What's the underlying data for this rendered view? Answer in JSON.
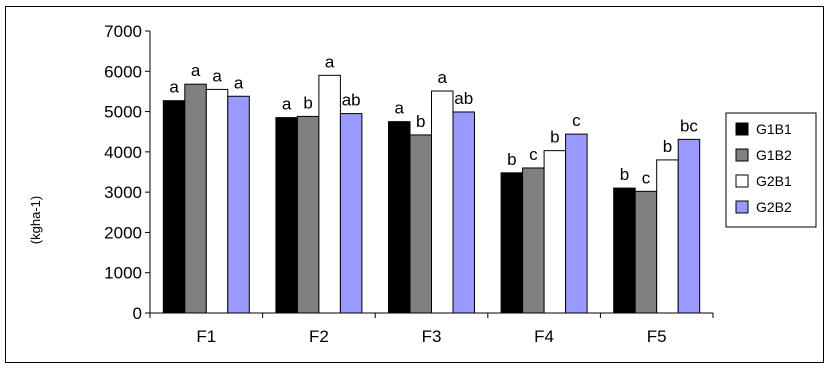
{
  "chart_data": {
    "type": "bar",
    "title": "",
    "xlabel": "",
    "ylabel": "(kgha-1)",
    "ylim": [
      0,
      7000
    ],
    "yticks": [
      0,
      1000,
      2000,
      3000,
      4000,
      5000,
      6000,
      7000
    ],
    "grid": false,
    "legend_position": "right",
    "categories": [
      "F1",
      "F2",
      "F3",
      "F4",
      "F5"
    ],
    "series": [
      {
        "name": "G1B1",
        "color": "#000000",
        "values": [
          5270,
          4850,
          4750,
          3480,
          3100
        ],
        "labels": [
          "a",
          "a",
          "a",
          "b",
          "b"
        ]
      },
      {
        "name": "G1B2",
        "color": "#808080",
        "values": [
          5680,
          4880,
          4420,
          3600,
          3020
        ],
        "labels": [
          "a",
          "b",
          "b",
          "c",
          "c"
        ]
      },
      {
        "name": "G2B1",
        "color": "#ffffff",
        "values": [
          5550,
          5900,
          5510,
          4030,
          3800
        ],
        "labels": [
          "a",
          "a",
          "a",
          "b",
          "b"
        ]
      },
      {
        "name": "G2B2",
        "color": "#9999ff",
        "values": [
          5380,
          4950,
          4990,
          4440,
          4310
        ],
        "labels": [
          "a",
          "ab",
          "ab",
          "c",
          "bc"
        ]
      }
    ]
  }
}
